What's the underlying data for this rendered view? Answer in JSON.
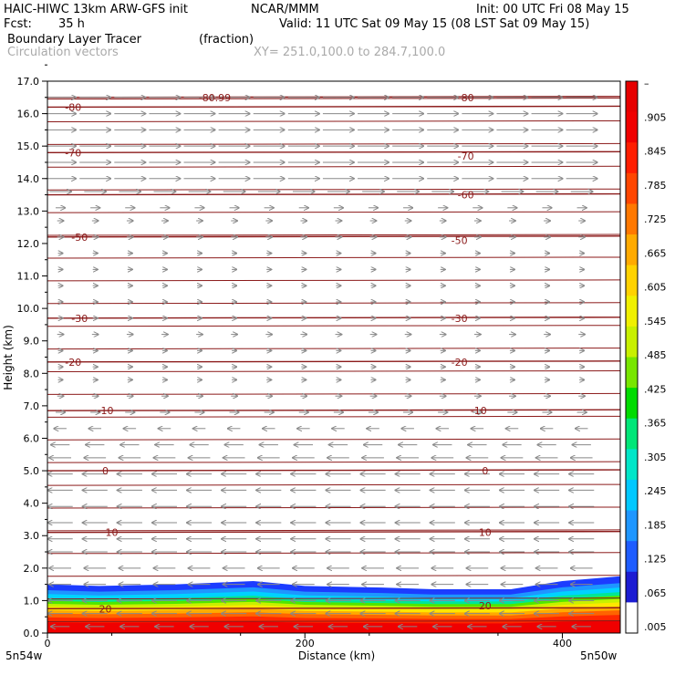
{
  "header": {
    "model": "HAIC-HIWC 13km ARW-GFS init",
    "org": "NCAR/MMM",
    "init": "Init: 00 UTC Fri 08 May 15",
    "fcst_label": "Fcst:",
    "fcst_value": "35 h",
    "valid": "Valid: 11 UTC Sat 09 May 15 (08 LST Sat 09 May 15)",
    "field": "Boundary Layer Tracer",
    "units": "(fraction)",
    "vectors": "Circulation vectors",
    "xy": "XY= 251.0,100.0 to 284.7,100.0"
  },
  "colors": {
    "isotherm": "#8b1a1a",
    "vector": "#888888",
    "colorbar": [
      "#ffffff",
      "#1c1cd2",
      "#1e5cff",
      "#1e96ff",
      "#00c8ff",
      "#00e6c8",
      "#00e678",
      "#00dc00",
      "#78e600",
      "#c8f000",
      "#f0f000",
      "#ffd200",
      "#ffaa00",
      "#ff7800",
      "#ff4600",
      "#ff1e00",
      "#f00000",
      "#e60000"
    ]
  },
  "chart_data": {
    "type": "heatmap",
    "xlabel": "Distance (km)",
    "ylabel": "Height (km)",
    "xlim": [
      0,
      445
    ],
    "ylim": [
      0,
      17
    ],
    "xticks": [
      "0",
      "200",
      "400"
    ],
    "yticks": [
      "0.0",
      "1.0",
      "2.0",
      "3.0",
      "4.0",
      "5.0",
      "6.0",
      "7.0",
      "8.0",
      "9.0",
      "10.0",
      "11.0",
      "12.0",
      "13.0",
      "14.0",
      "15.0",
      "16.0",
      "17.0"
    ],
    "x_end_labels": [
      "5n54w",
      "5n50w"
    ],
    "colorbar_labels": [
      ".005",
      ".065",
      ".125",
      ".185",
      ".245",
      ".305",
      ".365",
      ".425",
      ".485",
      ".545",
      ".605",
      ".665",
      ".725",
      ".785",
      ".845",
      ".905",
      "–"
    ],
    "tracer_top_km": [
      [
        0,
        1.5
      ],
      [
        40,
        1.45
      ],
      [
        100,
        1.5
      ],
      [
        160,
        1.6
      ],
      [
        200,
        1.45
      ],
      [
        260,
        1.4
      ],
      [
        300,
        1.35
      ],
      [
        360,
        1.35
      ],
      [
        400,
        1.6
      ],
      [
        445,
        1.75
      ]
    ],
    "isotherm_heights_km": {
      "-80.99": 16.5,
      "-80": 16.2,
      "-70": 14.8,
      "-60": 13.5,
      "-50": 12.2,
      "-30": 9.7,
      "-20": 8.35,
      "-10": 6.85,
      "0": 5.0,
      "10": 3.1,
      "20": 0.75
    },
    "contour_labels": [
      {
        "text": "-80.99",
        "x": 130,
        "y": 16.5
      },
      {
        "text": "-80",
        "x": 20,
        "y": 16.2
      },
      {
        "text": "-80",
        "x": 325,
        "y": 16.5
      },
      {
        "text": "-70",
        "x": 20,
        "y": 14.8
      },
      {
        "text": "-70",
        "x": 325,
        "y": 14.7
      },
      {
        "text": "-60",
        "x": 325,
        "y": 13.5
      },
      {
        "text": "-50",
        "x": 25,
        "y": 12.2
      },
      {
        "text": "-50",
        "x": 320,
        "y": 12.1
      },
      {
        "text": "-30",
        "x": 25,
        "y": 9.7
      },
      {
        "text": "-30",
        "x": 320,
        "y": 9.7
      },
      {
        "text": "-20",
        "x": 20,
        "y": 8.35
      },
      {
        "text": "-20",
        "x": 320,
        "y": 8.35
      },
      {
        "text": "-10",
        "x": 45,
        "y": 6.85
      },
      {
        "text": "-10",
        "x": 335,
        "y": 6.85
      },
      {
        "text": "0",
        "x": 45,
        "y": 5.0
      },
      {
        "text": "0",
        "x": 340,
        "y": 5.0
      },
      {
        "text": "10",
        "x": 50,
        "y": 3.1
      },
      {
        "text": "10",
        "x": 340,
        "y": 3.1
      },
      {
        "text": "20",
        "x": 45,
        "y": 0.75
      },
      {
        "text": "20",
        "x": 340,
        "y": 0.85
      }
    ],
    "wind_by_height_km": [
      {
        "z": 16.5,
        "u": 1.0
      },
      {
        "z": 16.0,
        "u": 1.0
      },
      {
        "z": 15.5,
        "u": 1.0
      },
      {
        "z": 15.0,
        "u": 1.0
      },
      {
        "z": 14.5,
        "u": 1.0
      },
      {
        "z": 14.0,
        "u": 1.0
      },
      {
        "z": 13.6,
        "u": 0.7
      },
      {
        "z": 13.1,
        "u": 0.3
      },
      {
        "z": 12.7,
        "u": 0.2
      },
      {
        "z": 12.2,
        "u": 0.2
      },
      {
        "z": 11.7,
        "u": 0.15
      },
      {
        "z": 11.2,
        "u": 0.15
      },
      {
        "z": 10.7,
        "u": 0.15
      },
      {
        "z": 10.2,
        "u": 0.15
      },
      {
        "z": 9.7,
        "u": 0.15
      },
      {
        "z": 9.2,
        "u": 0.2
      },
      {
        "z": 8.7,
        "u": 0.15
      },
      {
        "z": 8.2,
        "u": 0.15
      },
      {
        "z": 7.8,
        "u": 0.15
      },
      {
        "z": 7.3,
        "u": 0.2
      },
      {
        "z": 6.8,
        "u": 0.3
      },
      {
        "z": 6.3,
        "u": -0.4
      },
      {
        "z": 5.8,
        "u": -0.6
      },
      {
        "z": 5.4,
        "u": -0.7
      },
      {
        "z": 4.9,
        "u": -0.8
      },
      {
        "z": 4.4,
        "u": -0.8
      },
      {
        "z": 3.9,
        "u": -0.8
      },
      {
        "z": 3.4,
        "u": -0.8
      },
      {
        "z": 2.9,
        "u": -0.8
      },
      {
        "z": 2.5,
        "u": -0.8
      },
      {
        "z": 2.0,
        "u": -0.7
      },
      {
        "z": 1.5,
        "u": -0.7
      },
      {
        "z": 1.0,
        "u": -0.8
      },
      {
        "z": 0.6,
        "u": -0.8
      },
      {
        "z": 0.2,
        "u": -0.6
      }
    ]
  }
}
